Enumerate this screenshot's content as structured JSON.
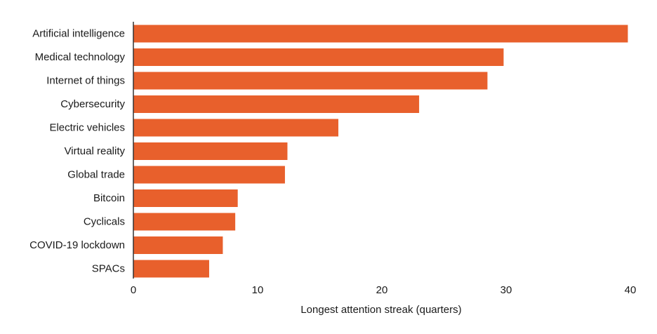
{
  "chart_data": {
    "type": "bar",
    "orientation": "horizontal",
    "categories": [
      "Artificial intelligence",
      "Medical technology",
      "Internet of things",
      "Cybersecurity",
      "Electric vehicles",
      "Virtual reality",
      "Global trade",
      "Bitcoin",
      "Cyclicals",
      "COVID-19 lockdown",
      "SPACs"
    ],
    "values": [
      39.8,
      29.8,
      28.5,
      23.0,
      16.5,
      12.4,
      12.2,
      8.4,
      8.2,
      7.2,
      6.1
    ],
    "xlabel": "Longest attention streak (quarters)",
    "ylabel": "",
    "title": "",
    "xlim": [
      0,
      40
    ],
    "xticks": [
      0,
      10,
      20,
      30,
      40
    ],
    "bar_color": "#E8602C",
    "axis_color": "#333333",
    "grid": false,
    "legend": false
  }
}
